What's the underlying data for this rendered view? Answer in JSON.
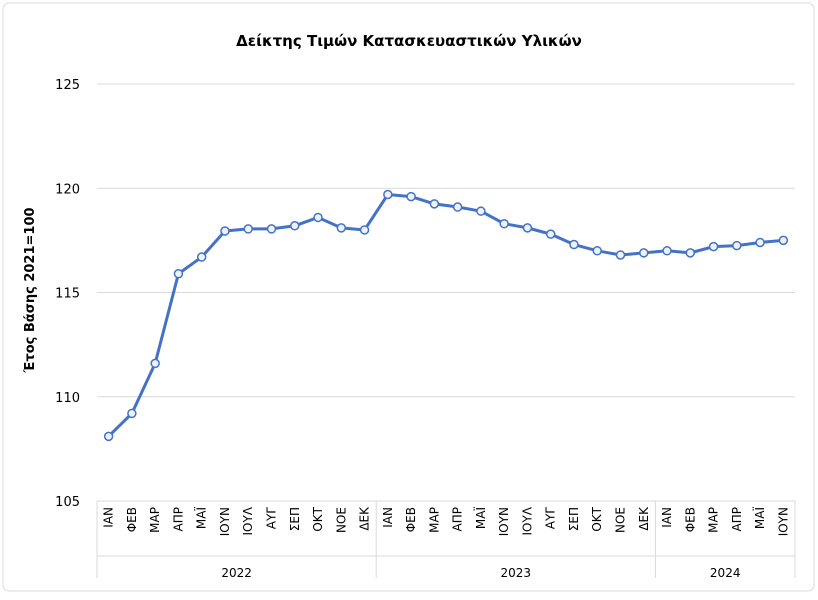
{
  "chart_data": {
    "type": "line",
    "title": "Δείκτης Τιμών Κατασκευαστικών Υλικών",
    "y_label": "Έτος Βάσης 2021=100",
    "groups": [
      {
        "name": "2022",
        "categories": [
          "ΙΑΝ",
          "ΦΕΒ",
          "ΜΑΡ",
          "ΑΠΡ",
          "ΜΑΪ",
          "ΙΟΥΝ",
          "ΙΟΥΛ",
          "ΑΥΓ",
          "ΣΕΠ",
          "ΟΚΤ",
          "ΝΟΕ",
          "ΔΕΚ"
        ]
      },
      {
        "name": "2023",
        "categories": [
          "ΙΑΝ",
          "ΦΕΒ",
          "ΜΑΡ",
          "ΑΠΡ",
          "ΜΑΪ",
          "ΙΟΥΝ",
          "ΙΟΥΛ",
          "ΑΥΓ",
          "ΣΕΠ",
          "ΟΚΤ",
          "ΝΟΕ",
          "ΔΕΚ"
        ]
      },
      {
        "name": "2024",
        "categories": [
          "ΙΑΝ",
          "ΦΕΒ",
          "ΜΑΡ",
          "ΑΠΡ",
          "ΜΑΪ",
          "ΙΟΥΝ"
        ]
      }
    ],
    "series": [
      {
        "color": "#4472c4",
        "values": [
          108.1,
          109.2,
          111.6,
          115.9,
          116.7,
          117.95,
          118.05,
          118.05,
          118.2,
          118.6,
          118.1,
          118.0,
          119.7,
          119.6,
          119.25,
          119.1,
          118.9,
          118.3,
          118.1,
          117.8,
          117.3,
          117.0,
          116.8,
          116.9,
          117.0,
          116.9,
          117.2,
          117.25,
          117.4,
          117.5
        ]
      }
    ],
    "ylim": [
      105,
      125
    ],
    "yticks": [
      105,
      110,
      115,
      120,
      125
    ],
    "grid": true
  }
}
